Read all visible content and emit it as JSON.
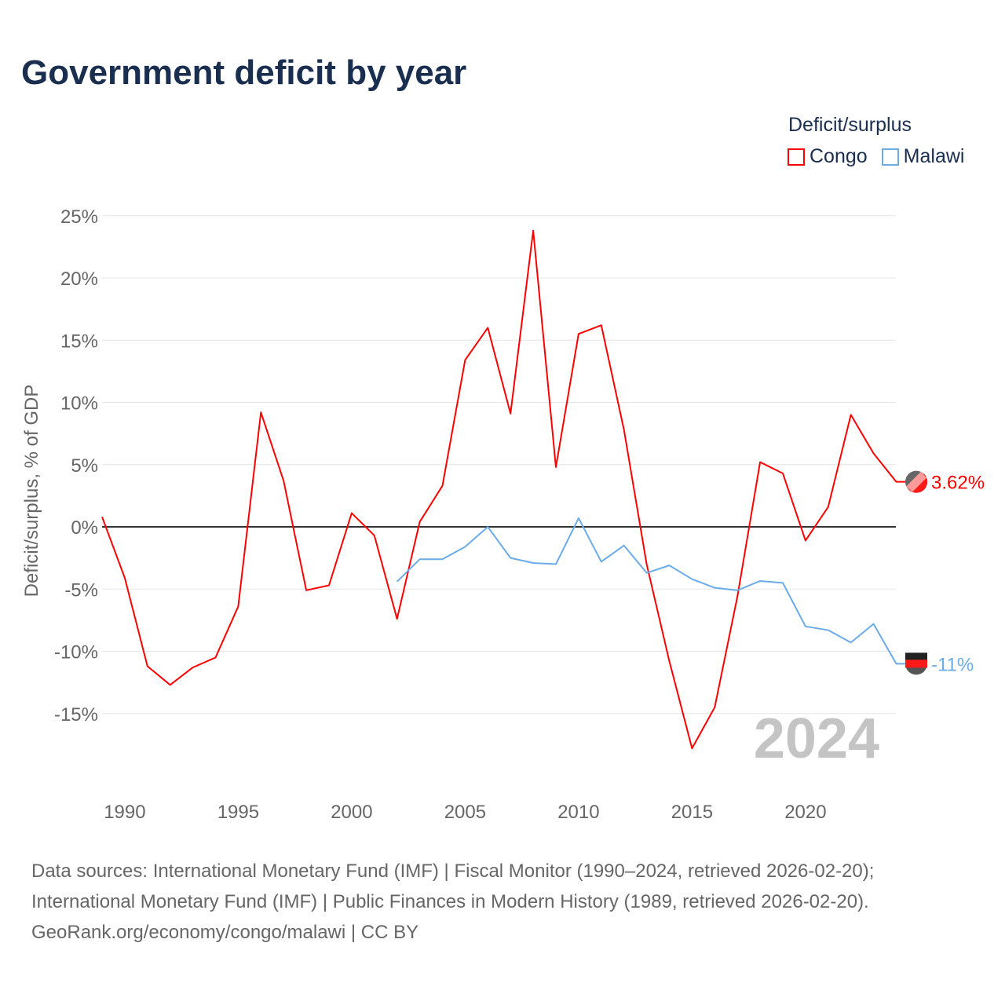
{
  "chart_data": {
    "type": "line",
    "title": "Government deficit by year",
    "ylabel": "Deficit/surplus, % of GDP",
    "xlabel": "",
    "legend_title": "Deficit/surplus",
    "legend_placement": "top-right",
    "xlim": [
      1989,
      2024
    ],
    "ylim": [
      -20,
      25
    ],
    "x_ticks": [
      1990,
      1995,
      2000,
      2005,
      2010,
      2015,
      2020
    ],
    "y_ticks": [
      25,
      20,
      15,
      10,
      5,
      0,
      -5,
      -10,
      -15
    ],
    "y_tick_labels": [
      "25%",
      "20%",
      "15%",
      "10%",
      "5%",
      "0%",
      "-5%",
      "-10%",
      "-15%"
    ],
    "year_label": "2024",
    "series": [
      {
        "name": "Congo",
        "color": "#ff0000",
        "end_label": "3.62%",
        "x": [
          1989,
          1990,
          1991,
          1992,
          1993,
          1994,
          1995,
          1996,
          1997,
          1998,
          1999,
          2000,
          2001,
          2002,
          2003,
          2004,
          2005,
          2006,
          2007,
          2008,
          2009,
          2010,
          2011,
          2012,
          2013,
          2014,
          2015,
          2016,
          2017,
          2018,
          2019,
          2020,
          2021,
          2022,
          2023,
          2024
        ],
        "values": [
          0.8,
          -4.1,
          -11.2,
          -12.7,
          -11.3,
          -10.5,
          -6.4,
          9.2,
          3.7,
          -5.1,
          -4.7,
          1.1,
          -0.7,
          -7.4,
          0.4,
          3.3,
          13.4,
          16.0,
          9.1,
          23.8,
          4.8,
          15.5,
          16.2,
          7.8,
          -3.0,
          -10.8,
          -17.8,
          -14.5,
          -5.6,
          5.2,
          4.3,
          -1.1,
          1.6,
          9.0,
          5.9,
          3.62
        ]
      },
      {
        "name": "Malawi",
        "color": "#6aabe8",
        "end_label": "-11%",
        "x": [
          2002,
          2003,
          2004,
          2005,
          2006,
          2007,
          2008,
          2009,
          2010,
          2011,
          2012,
          2013,
          2014,
          2015,
          2016,
          2017,
          2018,
          2019,
          2020,
          2021,
          2022,
          2023,
          2024
        ],
        "values": [
          -4.4,
          -2.6,
          -2.6,
          -1.6,
          0.0,
          -2.5,
          -2.9,
          -3.0,
          0.7,
          -2.8,
          -1.5,
          -3.7,
          -3.1,
          -4.2,
          -4.9,
          -5.1,
          -4.35,
          -4.5,
          -8.0,
          -8.3,
          -9.3,
          -7.8,
          -11.0
        ]
      }
    ]
  },
  "footer": {
    "line1": "Data sources: International Monetary Fund (IMF) | Fiscal Monitor (1990–2024, retrieved 2026-02-20);",
    "line2": "International Monetary Fund (IMF) | Public Finances in Modern History (1989, retrieved 2026-02-20).",
    "line3": "GeoRank.org/economy/congo/malawi | CC BY"
  }
}
